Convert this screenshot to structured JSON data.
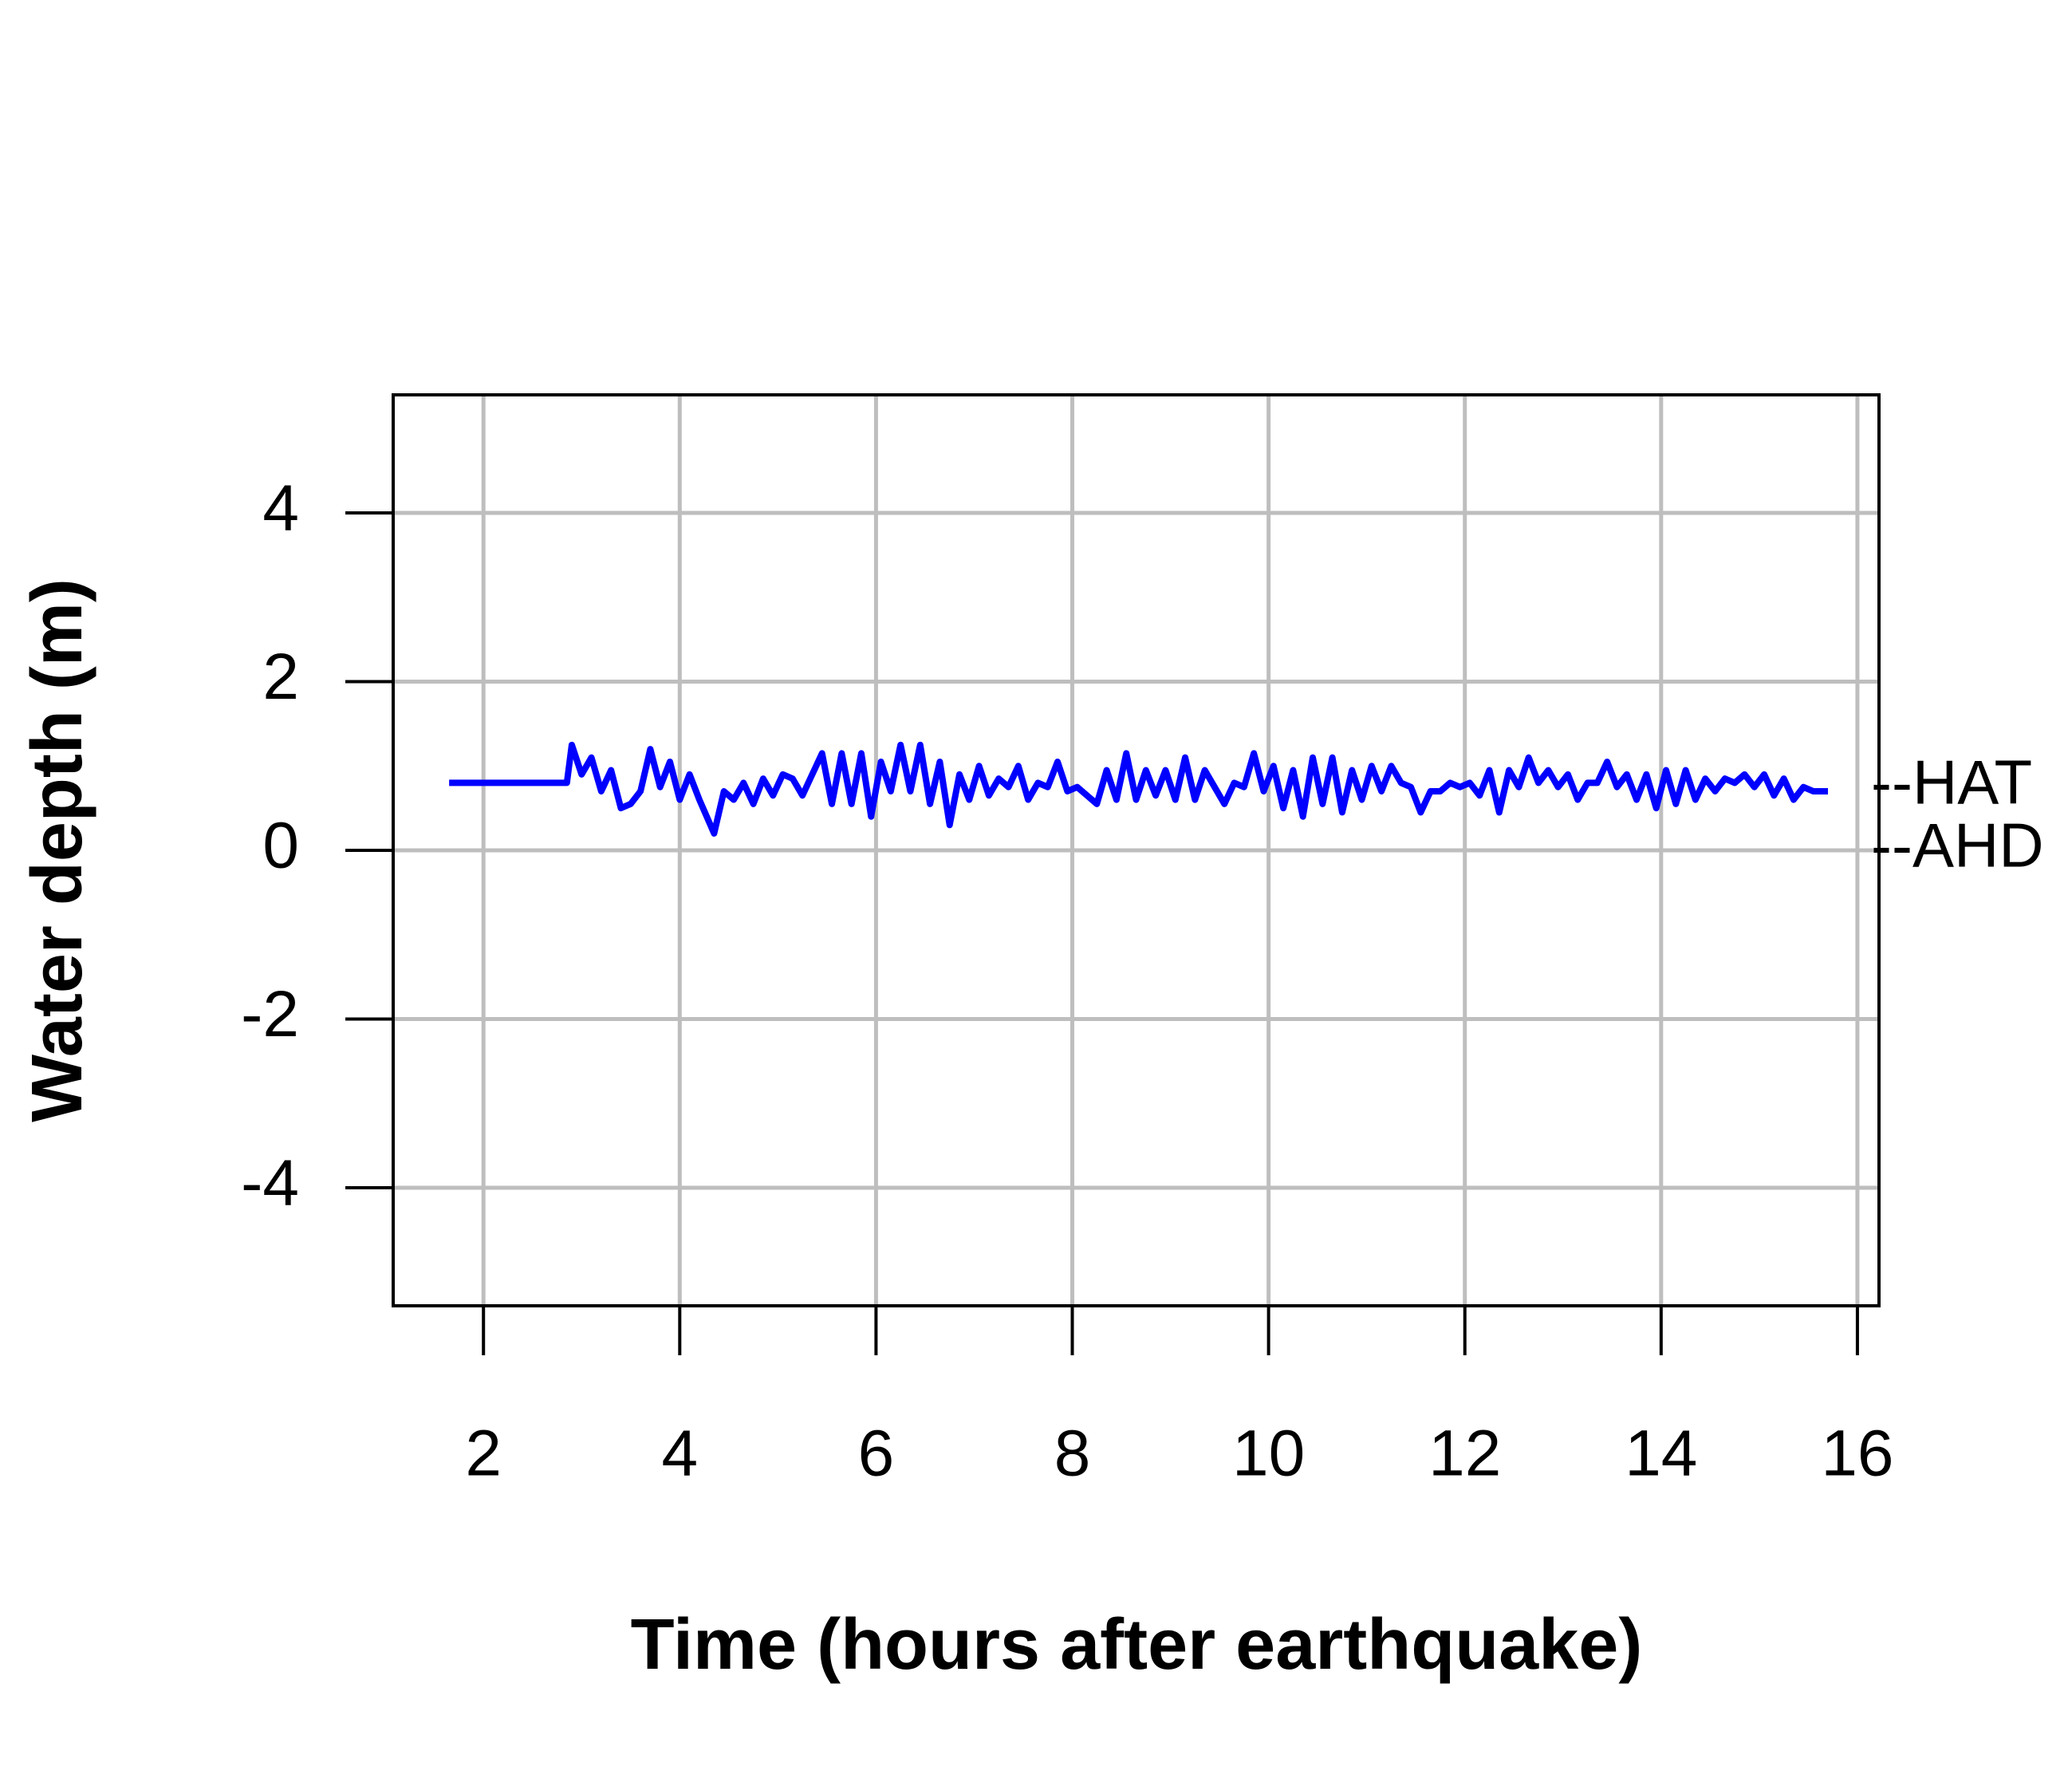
{
  "chart_data": {
    "type": "line",
    "x_label": "Time (hours after earthquake)",
    "y_label": "Water depth (m)",
    "xlim": [
      1.08,
      16.22
    ],
    "ylim": [
      -5.4,
      5.4
    ],
    "xticks": [
      2,
      4,
      6,
      8,
      10,
      12,
      14,
      16
    ],
    "yticks": [
      -4,
      -2,
      0,
      2,
      4
    ],
    "grid": true,
    "annotations": [
      {
        "text": "--HAT",
        "y": 0.75
      },
      {
        "text": "--AHD",
        "y": 0
      }
    ],
    "series": [
      {
        "color": "#0000ff",
        "x": [
          1.65,
          2.85,
          2.9,
          3.0,
          3.1,
          3.2,
          3.3,
          3.4,
          3.5,
          3.6,
          3.7,
          3.8,
          3.9,
          4.0,
          4.1,
          4.2,
          4.35,
          4.45,
          4.55,
          4.65,
          4.75,
          4.85,
          4.95,
          5.05,
          5.15,
          5.25,
          5.35,
          5.45,
          5.55,
          5.65,
          5.75,
          5.85,
          5.95,
          6.05,
          6.15,
          6.25,
          6.35,
          6.45,
          6.55,
          6.65,
          6.75,
          6.85,
          6.95,
          7.05,
          7.15,
          7.25,
          7.35,
          7.45,
          7.55,
          7.65,
          7.75,
          7.85,
          7.95,
          8.05,
          8.15,
          8.25,
          8.35,
          8.45,
          8.55,
          8.65,
          8.75,
          8.85,
          8.95,
          9.05,
          9.15,
          9.25,
          9.35,
          9.45,
          9.55,
          9.65,
          9.75,
          9.85,
          9.95,
          10.05,
          10.15,
          10.25,
          10.35,
          10.45,
          10.55,
          10.65,
          10.75,
          10.85,
          10.95,
          11.05,
          11.15,
          11.25,
          11.35,
          11.45,
          11.55,
          11.65,
          11.75,
          11.85,
          11.95,
          12.05,
          12.15,
          12.25,
          12.35,
          12.45,
          12.55,
          12.65,
          12.75,
          12.85,
          12.95,
          13.05,
          13.15,
          13.25,
          13.35,
          13.45,
          13.55,
          13.65,
          13.75,
          13.85,
          13.95,
          14.05,
          14.15,
          14.25,
          14.35,
          14.45,
          14.55,
          14.65,
          14.75,
          14.85,
          14.95,
          15.05,
          15.15,
          15.25,
          15.35,
          15.45,
          15.55,
          15.7
        ],
        "values": [
          0.8,
          0.8,
          1.25,
          0.9,
          1.1,
          0.7,
          0.95,
          0.5,
          0.55,
          0.7,
          1.2,
          0.75,
          1.05,
          0.6,
          0.9,
          0.6,
          0.2,
          0.7,
          0.6,
          0.8,
          0.55,
          0.85,
          0.65,
          0.9,
          0.85,
          0.65,
          0.9,
          1.15,
          0.55,
          1.15,
          0.55,
          1.15,
          0.4,
          1.05,
          0.7,
          1.25,
          0.7,
          1.25,
          0.55,
          1.05,
          0.3,
          0.9,
          0.6,
          1.0,
          0.65,
          0.85,
          0.75,
          1.0,
          0.6,
          0.8,
          0.75,
          1.05,
          0.7,
          0.75,
          0.65,
          0.55,
          0.95,
          0.6,
          1.15,
          0.6,
          0.95,
          0.65,
          0.95,
          0.6,
          1.1,
          0.6,
          0.95,
          0.75,
          0.55,
          0.8,
          0.75,
          1.15,
          0.7,
          1.0,
          0.5,
          0.95,
          0.4,
          1.1,
          0.55,
          1.1,
          0.45,
          0.95,
          0.6,
          1.0,
          0.7,
          1.0,
          0.8,
          0.75,
          0.45,
          0.7,
          0.7,
          0.8,
          0.75,
          0.8,
          0.65,
          0.95,
          0.45,
          0.95,
          0.75,
          1.1,
          0.8,
          0.95,
          0.75,
          0.9,
          0.6,
          0.8,
          0.8,
          1.05,
          0.75,
          0.9,
          0.6,
          0.9,
          0.5,
          0.95,
          0.55,
          0.95,
          0.6,
          0.85,
          0.7,
          0.85,
          0.8,
          0.9,
          0.75,
          0.9,
          0.65,
          0.85,
          0.6,
          0.75,
          0.7,
          0.7
        ]
      }
    ]
  }
}
